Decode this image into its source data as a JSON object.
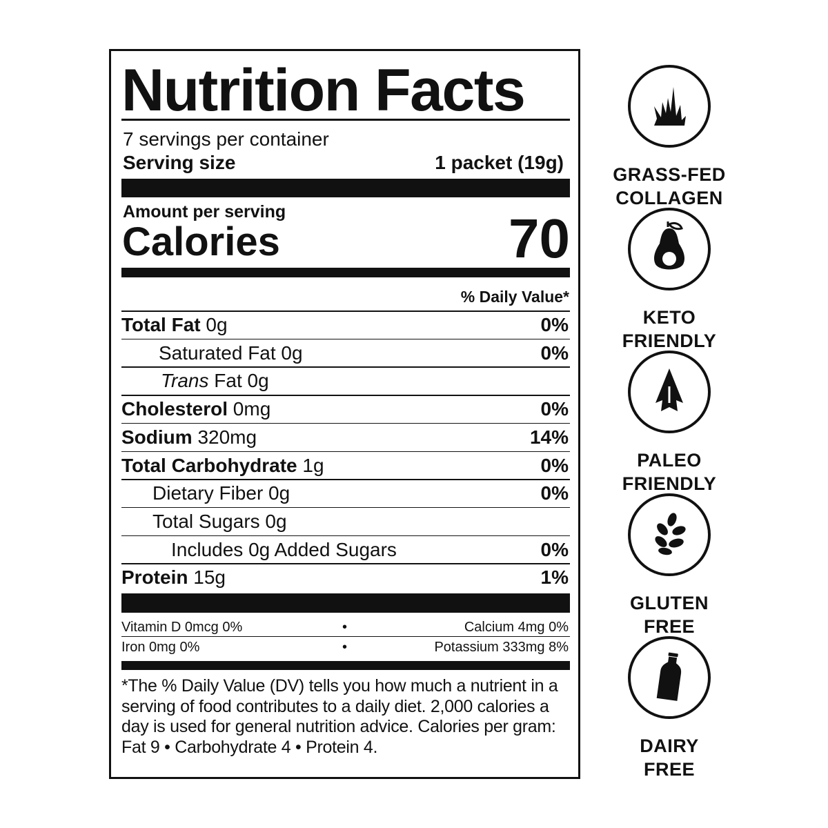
{
  "label": {
    "title": "Nutrition Facts",
    "servings_per_container": "7 servings per container",
    "serving_size_label": "Serving size",
    "serving_size_value": "1 packet (19g)",
    "amount_per_serving": "Amount per serving",
    "calories_label": "Calories",
    "calories_value": "70",
    "daily_value_header": "% Daily Value*",
    "rows": [
      {
        "name": "Total Fat",
        "amount": " 0g",
        "dv": "0%",
        "bold": true,
        "indent": 0
      },
      {
        "name": "Saturated Fat 0g",
        "amount": "",
        "dv": "0%",
        "bold": false,
        "indent": 1
      },
      {
        "name": "Trans",
        "amount": " Fat 0g",
        "dv": "",
        "bold": false,
        "indent": 1,
        "italic": true
      },
      {
        "name": "Cholesterol",
        "amount": " 0mg",
        "dv": "0%",
        "bold": true,
        "indent": 0
      },
      {
        "name": "Sodium",
        "amount": " 320mg",
        "dv": "14%",
        "bold": true,
        "indent": 0
      },
      {
        "name": "Total Carbohydrate",
        "amount": " 1g",
        "dv": "0%",
        "bold": true,
        "indent": 0
      },
      {
        "name": "Dietary Fiber 0g",
        "amount": "",
        "dv": "0%",
        "bold": false,
        "indent": 2
      },
      {
        "name": "Total Sugars 0g",
        "amount": "",
        "dv": "",
        "bold": false,
        "indent": 2
      },
      {
        "name": "Includes 0g Added Sugars",
        "amount": "",
        "dv": "0%",
        "bold": false,
        "indent": 3
      },
      {
        "name": "Protein",
        "amount": " 15g",
        "dv": "1%",
        "bold": true,
        "indent": 0
      }
    ],
    "vitamins": [
      {
        "left": "Vitamin D 0mcg 0%",
        "sep": "•",
        "right": "Calcium 4mg 0%"
      },
      {
        "left": "Iron 0mg 0%",
        "sep": "•",
        "right": "Potassium 333mg 8%"
      }
    ],
    "footnote": "*The % Daily Value (DV) tells you how much a nutrient in a serving of food contributes to a daily diet. 2,000 calories a day is used for general nutrition advice. Calories per gram: Fat 9 • Carbohydrate 4 • Protein 4."
  },
  "badges": [
    {
      "icon": "grass-icon",
      "line1": "GRASS-FED",
      "line2": "COLLAGEN"
    },
    {
      "icon": "avocado-icon",
      "line1": "KETO",
      "line2": "FRIENDLY"
    },
    {
      "icon": "arrowhead-icon",
      "line1": "PALEO",
      "line2": "FRIENDLY"
    },
    {
      "icon": "wheat-icon",
      "line1": "GLUTEN",
      "line2": "FREE"
    },
    {
      "icon": "milk-bottle-icon",
      "line1": "DAIRY",
      "line2": "FREE"
    }
  ],
  "colors": {
    "ink": "#111111",
    "background": "#ffffff"
  }
}
